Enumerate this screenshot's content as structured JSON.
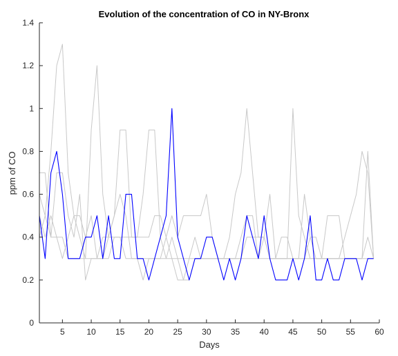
{
  "chart_data": {
    "type": "line",
    "title": "Evolution of the concentration of CO in NY-Bronx",
    "xlabel": "Days",
    "ylabel": "ppm of CO",
    "xlim": [
      1,
      60
    ],
    "ylim": [
      0,
      1.4
    ],
    "xticks": [
      5,
      10,
      15,
      20,
      25,
      30,
      35,
      40,
      45,
      50,
      55,
      60
    ],
    "yticks": [
      0,
      0.2,
      0.4,
      0.6,
      0.8,
      1,
      1.2,
      1.4
    ],
    "grid": false,
    "series": [
      {
        "color": "#0000ff",
        "emphasis": true,
        "x": [
          1,
          2,
          3,
          4,
          5,
          6,
          7,
          8,
          9,
          10,
          11,
          12,
          13,
          14,
          15,
          16,
          17,
          18,
          19,
          20,
          21,
          22,
          23,
          24,
          25,
          26,
          27,
          28,
          29,
          30,
          31,
          32,
          33,
          34,
          35,
          36,
          37,
          38,
          39,
          40,
          41,
          42,
          43,
          44,
          45,
          46,
          47,
          48,
          49,
          50,
          51,
          52,
          53,
          54,
          55,
          56,
          57,
          58,
          59
        ],
        "values": [
          0.5,
          0.3,
          0.7,
          0.8,
          0.6,
          0.3,
          0.3,
          0.3,
          0.4,
          0.4,
          0.5,
          0.3,
          0.5,
          0.3,
          0.3,
          0.6,
          0.6,
          0.3,
          0.3,
          0.2,
          0.3,
          0.4,
          0.5,
          1.0,
          0.4,
          0.3,
          0.2,
          0.3,
          0.3,
          0.4,
          0.4,
          0.3,
          0.2,
          0.3,
          0.2,
          0.3,
          0.5,
          0.4,
          0.3,
          0.5,
          0.3,
          0.2,
          0.2,
          0.2,
          0.3,
          0.2,
          0.3,
          0.5,
          0.2,
          0.2,
          0.3,
          0.2,
          0.2,
          0.3,
          0.3,
          0.3,
          0.2,
          0.3,
          0.3
        ]
      },
      {
        "color": "#c8c8c8",
        "x": [
          1,
          2,
          3,
          4,
          5,
          6,
          7,
          8,
          9,
          10,
          11,
          12,
          13,
          14,
          15,
          16,
          17,
          18,
          19,
          20,
          21,
          22,
          23,
          24,
          25,
          26,
          27,
          28,
          29,
          30,
          31,
          32,
          33,
          34,
          35,
          36,
          37,
          38,
          39,
          40,
          41,
          42,
          43,
          44,
          45,
          46,
          47,
          48,
          49,
          50,
          51,
          52,
          53,
          54,
          55,
          56,
          57,
          58,
          59
        ],
        "values": [
          0.6,
          0.5,
          0.8,
          1.2,
          1.3,
          0.7,
          0.5,
          0.4,
          0.3,
          0.9,
          1.2,
          0.6,
          0.4,
          0.5,
          0.9,
          0.9,
          0.4,
          0.4,
          0.6,
          0.9,
          0.9,
          0.4,
          0.3,
          0.4,
          0.3,
          0.2,
          0.2,
          0.3,
          0.3,
          0.3,
          0.3,
          0.3,
          0.3,
          0.4,
          0.6,
          0.7,
          1.0,
          0.7,
          0.4,
          0.4,
          0.6,
          0.3,
          0.3,
          0.3,
          1.0,
          0.5,
          0.4,
          0.3,
          0.3,
          0.3,
          0.3,
          0.3,
          0.3,
          0.4,
          0.5,
          0.6,
          0.8,
          0.7,
          0.3
        ]
      },
      {
        "color": "#c8c8c8",
        "x": [
          1,
          2,
          3,
          4,
          5,
          6,
          7,
          8,
          9,
          10,
          11,
          12,
          13,
          14,
          15,
          16,
          17,
          18,
          19,
          20,
          21,
          22,
          23,
          24,
          25,
          26,
          27,
          28,
          29,
          30,
          31,
          32,
          33,
          34,
          35,
          36,
          37,
          38,
          39,
          40,
          41,
          42,
          43,
          44,
          45,
          46,
          47,
          48,
          49,
          50,
          51,
          52,
          53,
          54,
          55,
          56,
          57,
          58,
          59
        ],
        "values": [
          0.7,
          0.7,
          0.4,
          0.7,
          0.7,
          0.5,
          0.4,
          0.6,
          0.2,
          0.3,
          0.3,
          0.3,
          0.3,
          0.4,
          0.4,
          0.4,
          0.4,
          0.4,
          0.4,
          0.4,
          0.5,
          0.5,
          0.4,
          0.5,
          0.4,
          0.5,
          0.5,
          0.5,
          0.5,
          0.6,
          0.4,
          0.3,
          0.3,
          0.3,
          0.3,
          0.3,
          0.4,
          0.4,
          0.4,
          0.4,
          0.3,
          0.3,
          0.3,
          0.3,
          0.3,
          0.3,
          0.3,
          0.4,
          0.4,
          0.3,
          0.5,
          0.5,
          0.5,
          0.3,
          0.3,
          0.3,
          0.3,
          0.4,
          0.3
        ]
      },
      {
        "color": "#c8c8c8",
        "x": [
          1,
          2,
          3,
          4,
          5,
          6,
          7,
          8,
          9,
          10,
          11,
          12,
          13,
          14,
          15,
          16,
          17,
          18,
          19,
          20,
          21,
          22,
          23,
          24,
          25,
          26,
          27,
          28,
          29,
          30,
          31,
          32,
          33,
          34,
          35,
          36,
          37,
          38,
          39,
          40,
          41,
          42,
          43,
          44,
          45,
          46,
          47,
          48,
          49,
          50,
          51,
          52,
          53,
          54,
          55,
          56,
          57,
          58,
          59
        ],
        "values": [
          0.4,
          0.5,
          0.4,
          0.4,
          0.3,
          0.4,
          0.5,
          0.5,
          0.4,
          0.5,
          0.3,
          0.3,
          0.4,
          0.5,
          0.6,
          0.5,
          0.3,
          0.3,
          0.2,
          0.3,
          0.3,
          0.3,
          0.4,
          0.3,
          0.2,
          0.2,
          0.3,
          0.4,
          0.3,
          0.3,
          0.3,
          0.3,
          0.3,
          0.3,
          0.3,
          0.4,
          0.5,
          0.5,
          0.3,
          0.4,
          0.3,
          0.3,
          0.4,
          0.4,
          0.3,
          0.3,
          0.6,
          0.4,
          0.3,
          0.3,
          0.3,
          0.3,
          0.3,
          0.3,
          0.3,
          0.3,
          0.3,
          0.8,
          0.3
        ]
      },
      {
        "color": "#c8c8c8",
        "x": [
          1,
          2,
          3,
          4,
          5,
          6,
          7,
          8,
          9,
          10,
          11,
          12,
          13,
          14,
          15,
          16,
          17,
          18,
          19,
          20,
          21,
          22,
          23,
          24,
          25,
          26,
          27,
          28,
          29,
          30,
          31,
          32,
          33,
          34,
          35,
          36,
          37,
          38,
          39,
          40,
          41,
          42,
          43,
          44,
          45,
          46,
          47,
          48,
          49,
          50,
          51,
          52,
          53,
          54,
          55,
          56,
          57,
          58,
          59
        ],
        "values": [
          0.5,
          0.4,
          0.5,
          0.4,
          0.4,
          0.3,
          0.3,
          0.3,
          0.3,
          0.3,
          0.3,
          0.4,
          0.4,
          0.4,
          0.4,
          0.3,
          0.3,
          0.3,
          0.3,
          0.3,
          0.3,
          0.3,
          0.3,
          0.3,
          0.3,
          0.3,
          0.3,
          0.3,
          0.3,
          0.3,
          0.3,
          0.3,
          0.3,
          0.3,
          0.3,
          0.3,
          0.3,
          0.3,
          0.3,
          0.3,
          0.3,
          0.3,
          0.3,
          0.3,
          0.3,
          0.3,
          0.3,
          0.3,
          0.3,
          0.3,
          0.3,
          0.3,
          0.3,
          0.3,
          0.3,
          0.3,
          0.3,
          0.3,
          0.3
        ]
      }
    ]
  }
}
